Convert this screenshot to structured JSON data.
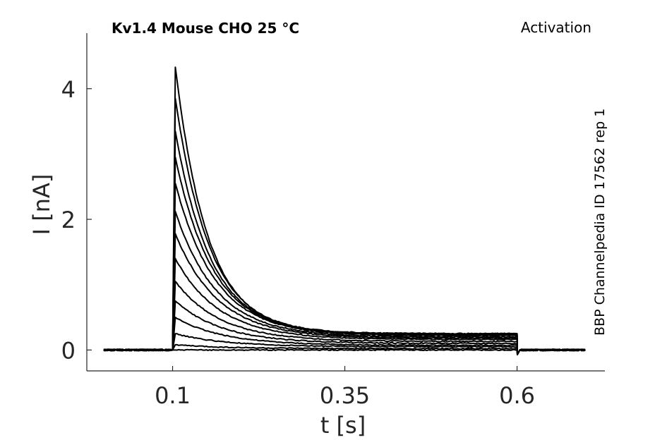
{
  "chart_data": {
    "type": "line",
    "title": "Kv1.4  Mouse  CHO  25 °C",
    "protocol": "Activation",
    "source_label": "BBP Channelpedia ID 17562 rep 1",
    "xlabel": "t [s]",
    "ylabel": "I [nA]",
    "x_ticks": [
      0.1,
      0.35,
      0.6
    ],
    "x_tick_labels": [
      "0.1",
      "0.35",
      "0.6"
    ],
    "y_ticks": [
      0,
      2,
      4
    ],
    "y_tick_labels": [
      "0",
      "2",
      "4"
    ],
    "xlim": [
      -0.0245,
      0.7275
    ],
    "ylim": [
      -0.32,
      4.85
    ],
    "data_range_x": [
      0.0,
      0.7
    ],
    "step_window": [
      0.1,
      0.6
    ],
    "grid": false,
    "legend": "none",
    "series": [
      {
        "peak": 4.33,
        "tau": 0.047,
        "steady": 0.25
      },
      {
        "peak": 3.85,
        "tau": 0.05,
        "steady": 0.25
      },
      {
        "peak": 3.35,
        "tau": 0.052,
        "steady": 0.24
      },
      {
        "peak": 2.95,
        "tau": 0.055,
        "steady": 0.23
      },
      {
        "peak": 2.55,
        "tau": 0.058,
        "steady": 0.22
      },
      {
        "peak": 2.12,
        "tau": 0.06,
        "steady": 0.2
      },
      {
        "peak": 1.78,
        "tau": 0.062,
        "steady": 0.18
      },
      {
        "peak": 1.4,
        "tau": 0.064,
        "steady": 0.16
      },
      {
        "peak": 1.05,
        "tau": 0.066,
        "steady": 0.13
      },
      {
        "peak": 0.75,
        "tau": 0.068,
        "steady": 0.1
      },
      {
        "peak": 0.5,
        "tau": 0.07,
        "steady": 0.07
      },
      {
        "peak": 0.25,
        "tau": 0.072,
        "steady": 0.05
      },
      {
        "peak": 0.08,
        "tau": 0.075,
        "steady": 0.02
      },
      {
        "peak": 0.0,
        "tau": 0.08,
        "steady": 0.0
      }
    ]
  }
}
